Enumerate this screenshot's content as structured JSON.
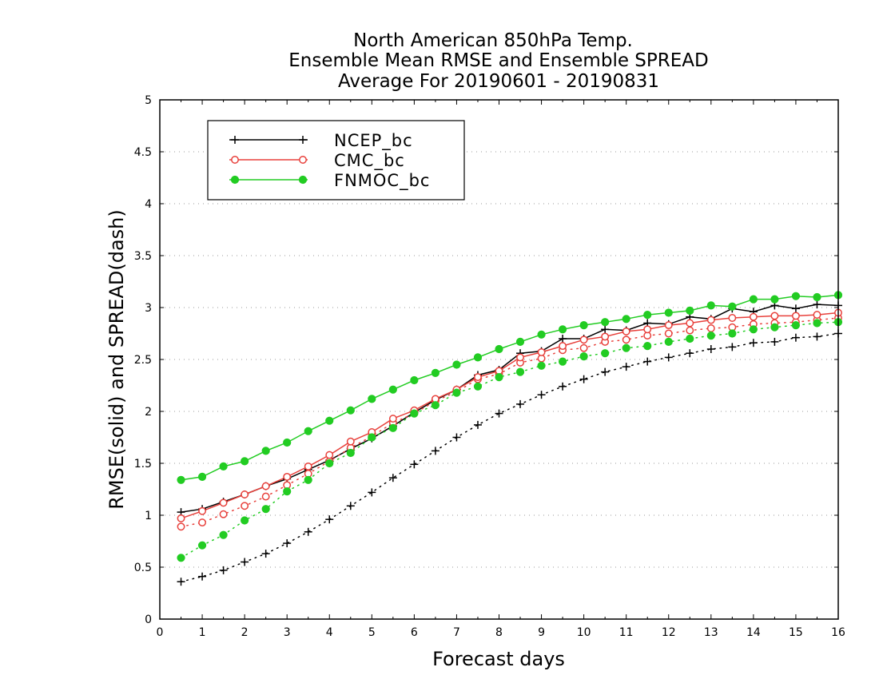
{
  "chart_data": {
    "type": "line",
    "title_lines": [
      "North American 850hPa Temp.",
      "Ensemble Mean RMSE and Ensemble SPREAD",
      "Average For 20190601 - 20190831"
    ],
    "xlabel": "Forecast days",
    "ylabel": "RMSE(solid) and SPREAD(dash)",
    "xlim": [
      0,
      16
    ],
    "ylim": [
      0,
      5
    ],
    "x_ticks": [
      "0",
      "1",
      "2",
      "3",
      "4",
      "5",
      "6",
      "7",
      "8",
      "9",
      "10",
      "11",
      "12",
      "13",
      "14",
      "15",
      "16"
    ],
    "y_ticks": [
      "0",
      "0.5",
      "1",
      "1.5",
      "2",
      "2.5",
      "3",
      "3.5",
      "4",
      "4.5",
      "5"
    ],
    "grid": "horizontal dotted",
    "legend_position": "top-left",
    "x": [
      0.5,
      1,
      1.5,
      2,
      2.5,
      3,
      3.5,
      4,
      4.5,
      5,
      5.5,
      6,
      6.5,
      7,
      7.5,
      8,
      8.5,
      9,
      9.5,
      10,
      10.5,
      11,
      11.5,
      12,
      12.5,
      13,
      13.5,
      14,
      14.5,
      15,
      15.5,
      16
    ],
    "series": [
      {
        "name": "NCEP_bc",
        "color": "#000000",
        "marker": "plus",
        "rmse": [
          1.03,
          1.06,
          1.13,
          1.2,
          1.28,
          1.35,
          1.44,
          1.53,
          1.64,
          1.74,
          1.86,
          1.99,
          2.11,
          2.21,
          2.35,
          2.4,
          2.56,
          2.58,
          2.7,
          2.7,
          2.79,
          2.78,
          2.85,
          2.84,
          2.91,
          2.89,
          2.99,
          2.96,
          3.02,
          2.99,
          3.03,
          3.02
        ],
        "spread": [
          0.36,
          0.41,
          0.47,
          0.55,
          0.63,
          0.73,
          0.84,
          0.96,
          1.09,
          1.22,
          1.36,
          1.49,
          1.62,
          1.75,
          1.87,
          1.98,
          2.07,
          2.16,
          2.24,
          2.31,
          2.38,
          2.43,
          2.48,
          2.52,
          2.56,
          2.6,
          2.62,
          2.66,
          2.67,
          2.71,
          2.72,
          2.75
        ]
      },
      {
        "name": "CMC_bc",
        "color": "#e8413c",
        "marker": "open-circle",
        "rmse": [
          0.97,
          1.04,
          1.12,
          1.2,
          1.28,
          1.37,
          1.47,
          1.58,
          1.71,
          1.8,
          1.93,
          2.01,
          2.12,
          2.21,
          2.33,
          2.39,
          2.52,
          2.57,
          2.63,
          2.69,
          2.72,
          2.77,
          2.79,
          2.83,
          2.85,
          2.88,
          2.9,
          2.91,
          2.92,
          2.92,
          2.93,
          2.95
        ],
        "spread": [
          0.89,
          0.93,
          1.01,
          1.09,
          1.18,
          1.29,
          1.4,
          1.52,
          1.65,
          1.76,
          1.89,
          1.98,
          2.1,
          2.19,
          2.31,
          2.36,
          2.47,
          2.51,
          2.59,
          2.61,
          2.67,
          2.69,
          2.73,
          2.75,
          2.78,
          2.8,
          2.81,
          2.84,
          2.85,
          2.86,
          2.88,
          2.9
        ]
      },
      {
        "name": "FNMOC_bc",
        "color": "#22cc22",
        "marker": "filled-circle",
        "rmse": [
          1.34,
          1.37,
          1.47,
          1.52,
          1.62,
          1.7,
          1.81,
          1.91,
          2.01,
          2.12,
          2.21,
          2.3,
          2.37,
          2.45,
          2.52,
          2.6,
          2.67,
          2.74,
          2.79,
          2.83,
          2.86,
          2.89,
          2.93,
          2.95,
          2.97,
          3.02,
          3.01,
          3.08,
          3.08,
          3.11,
          3.1,
          3.12
        ],
        "spread": [
          0.59,
          0.71,
          0.81,
          0.95,
          1.06,
          1.23,
          1.34,
          1.5,
          1.6,
          1.75,
          1.84,
          1.98,
          2.06,
          2.18,
          2.24,
          2.33,
          2.38,
          2.44,
          2.48,
          2.53,
          2.56,
          2.61,
          2.63,
          2.67,
          2.7,
          2.73,
          2.75,
          2.79,
          2.81,
          2.83,
          2.85,
          2.86
        ]
      }
    ]
  }
}
